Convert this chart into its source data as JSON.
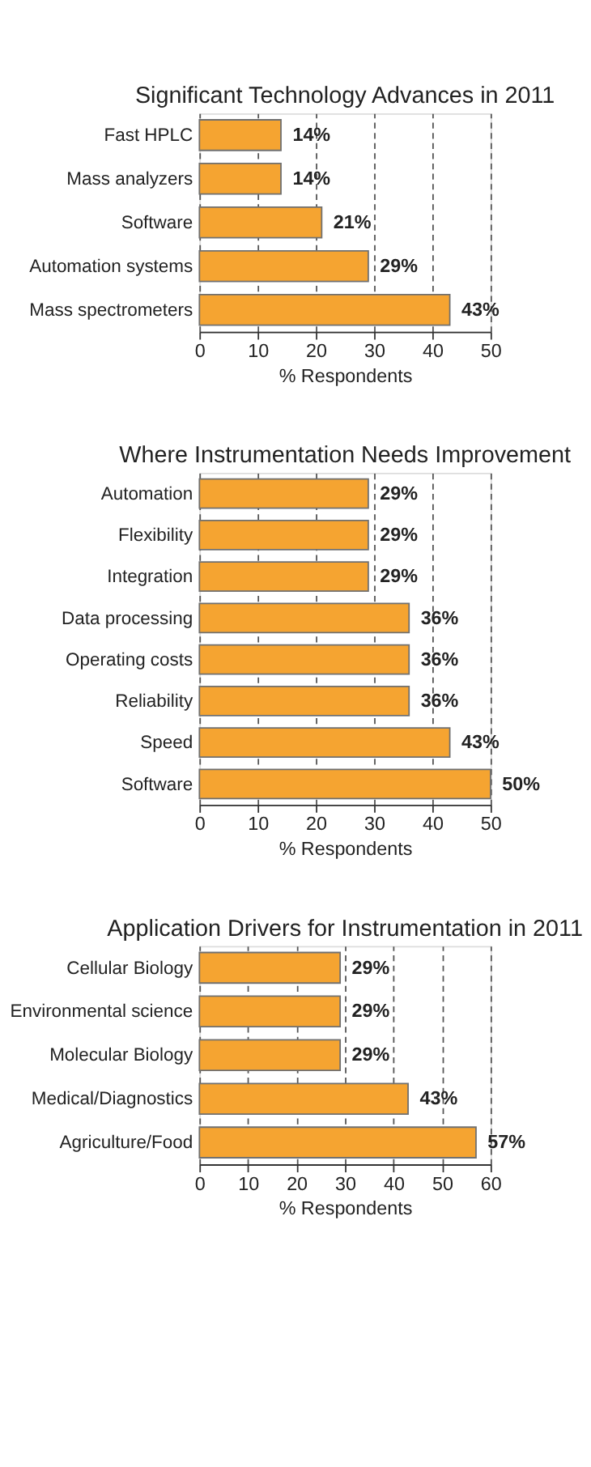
{
  "chart_data": [
    {
      "type": "bar",
      "orientation": "horizontal",
      "title": "Significant Technology Advances in 2011",
      "xlabel": "% Respondents",
      "categories": [
        "Fast HPLC",
        "Mass analyzers",
        "Software",
        "Automation systems",
        "Mass spectrometers"
      ],
      "series": [
        {
          "color": "#f5a431",
          "values": [
            14,
            14,
            21,
            29,
            43
          ],
          "value_labels": [
            "14%",
            "14%",
            "21%",
            "29%",
            "43%"
          ]
        }
      ],
      "xlim": [
        0,
        50
      ],
      "xticks": [
        0,
        10,
        20,
        30,
        40,
        50
      ],
      "grid": "x"
    },
    {
      "type": "bar",
      "orientation": "horizontal",
      "title": "Where Instrumentation Needs Improvement",
      "xlabel": "% Respondents",
      "categories": [
        "Automation",
        "Flexibility",
        "Integration",
        "Data processing",
        "Operating costs",
        "Reliability",
        "Speed",
        "Software"
      ],
      "series": [
        {
          "color": "#f5a431",
          "values": [
            29,
            29,
            29,
            36,
            36,
            36,
            43,
            50
          ],
          "value_labels": [
            "29%",
            "29%",
            "29%",
            "36%",
            "36%",
            "36%",
            "43%",
            "50%"
          ]
        }
      ],
      "xlim": [
        0,
        50
      ],
      "xticks": [
        0,
        10,
        20,
        30,
        40,
        50
      ],
      "grid": "x"
    },
    {
      "type": "bar",
      "orientation": "horizontal",
      "title": "Application Drivers for Instrumentation in 2011",
      "xlabel": "% Respondents",
      "categories": [
        "Cellular Biology",
        "Environmental science",
        "Molecular Biology",
        "Medical/Diagnostics",
        "Agriculture/Food"
      ],
      "series": [
        {
          "color": "#f5a431",
          "values": [
            29,
            29,
            29,
            43,
            57
          ],
          "value_labels": [
            "29%",
            "29%",
            "29%",
            "43%",
            "57%"
          ]
        }
      ],
      "xlim": [
        0,
        60
      ],
      "xticks": [
        0,
        10,
        20,
        30,
        40,
        50,
        60
      ],
      "grid": "x"
    }
  ]
}
